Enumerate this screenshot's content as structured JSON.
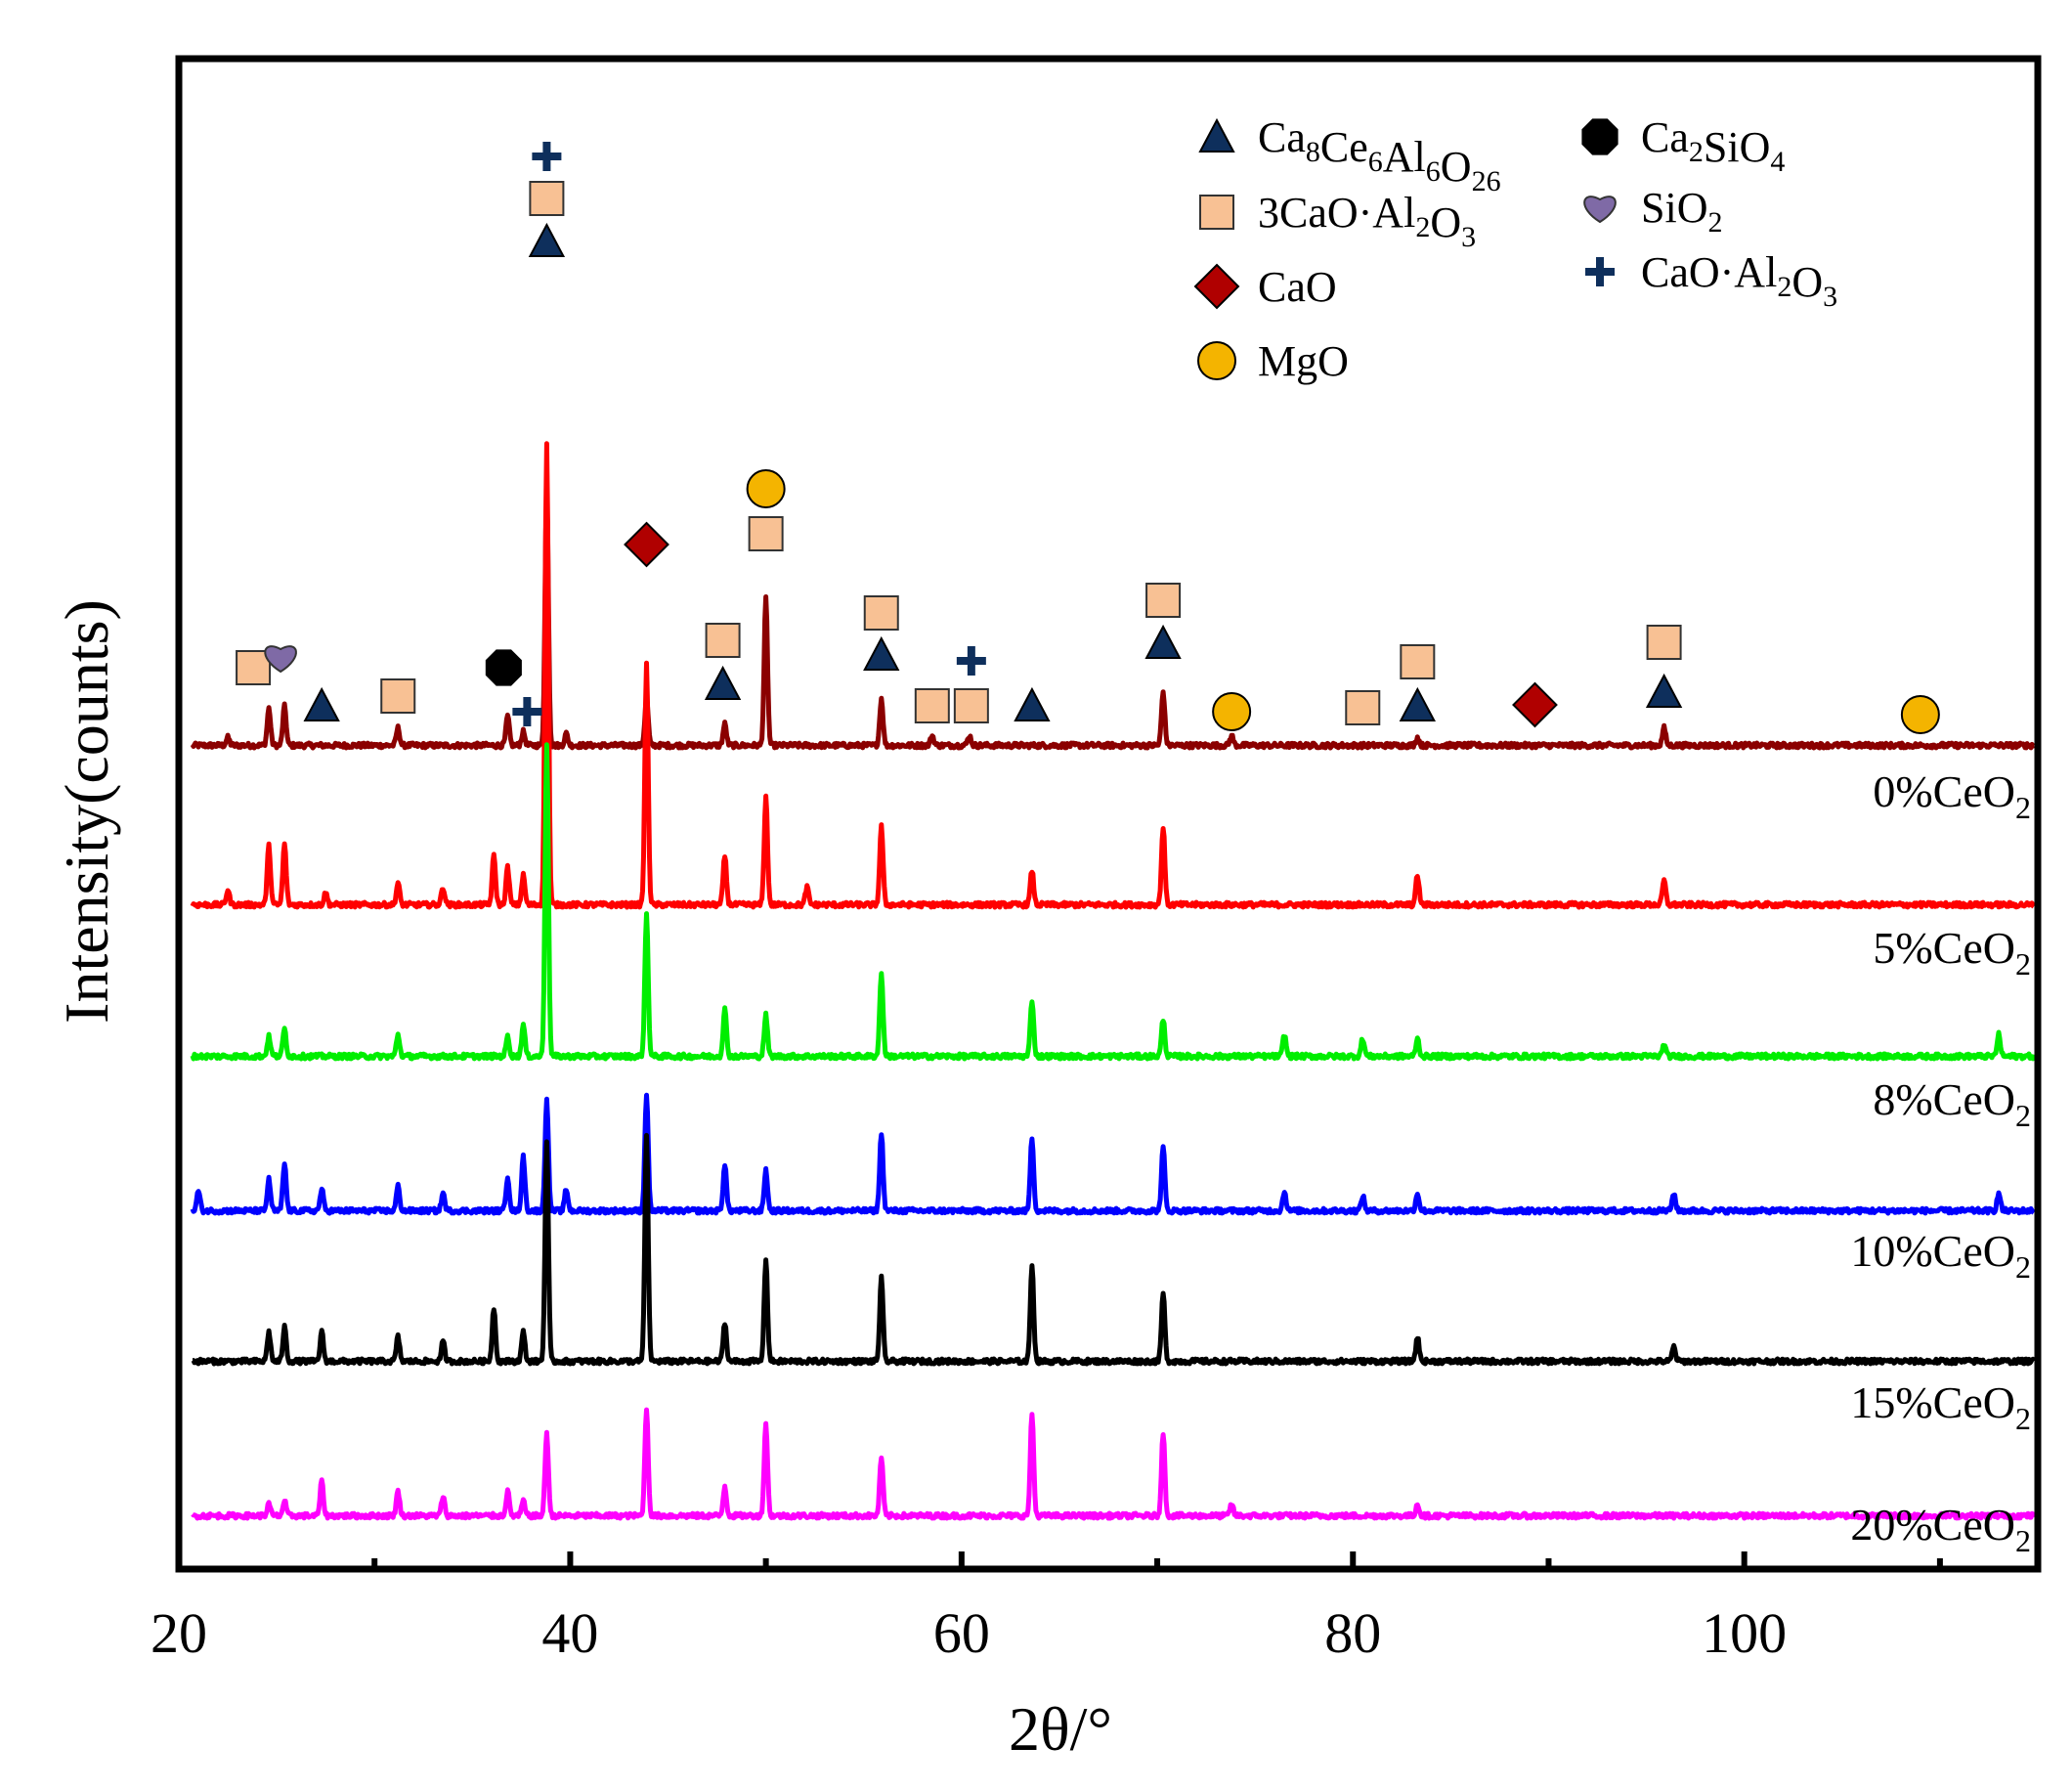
{
  "chart_data": {
    "type": "line",
    "xlabel": "2θ/°",
    "ylabel": "Intensity(counts)",
    "xlim": [
      20,
      115
    ],
    "xticks": [
      "20",
      "40",
      "60",
      "80",
      "100"
    ],
    "series": [
      {
        "name": "0%CeO2",
        "label_main": "0%CeO",
        "label_sub": "2",
        "color": "#8b0000",
        "baseline_counts": 0,
        "peaks": [
          {
            "x": 22.5,
            "y": 8
          },
          {
            "x": 24.6,
            "y": 38
          },
          {
            "x": 25.4,
            "y": 40
          },
          {
            "x": 31.2,
            "y": 18
          },
          {
            "x": 36.8,
            "y": 30
          },
          {
            "x": 37.6,
            "y": 14
          },
          {
            "x": 38.8,
            "y": 260
          },
          {
            "x": 39.8,
            "y": 12
          },
          {
            "x": 43.9,
            "y": 48
          },
          {
            "x": 47.9,
            "y": 22
          },
          {
            "x": 50.0,
            "y": 150
          },
          {
            "x": 55.9,
            "y": 48
          },
          {
            "x": 58.5,
            "y": 10
          },
          {
            "x": 60.4,
            "y": 10
          },
          {
            "x": 70.3,
            "y": 55
          },
          {
            "x": 73.8,
            "y": 10
          },
          {
            "x": 83.3,
            "y": 8
          },
          {
            "x": 95.9,
            "y": 18
          }
        ]
      },
      {
        "name": "5%CeO2",
        "label_main": "5%CeO",
        "label_sub": "2",
        "color": "#ff0000",
        "baseline_counts": 0,
        "peaks": [
          {
            "x": 22.5,
            "y": 15
          },
          {
            "x": 24.6,
            "y": 60
          },
          {
            "x": 25.4,
            "y": 62
          },
          {
            "x": 27.5,
            "y": 12
          },
          {
            "x": 31.2,
            "y": 22
          },
          {
            "x": 33.5,
            "y": 18
          },
          {
            "x": 36.1,
            "y": 50
          },
          {
            "x": 36.8,
            "y": 38
          },
          {
            "x": 37.6,
            "y": 30
          },
          {
            "x": 38.8,
            "y": 470
          },
          {
            "x": 43.9,
            "y": 245
          },
          {
            "x": 47.9,
            "y": 50
          },
          {
            "x": 50.0,
            "y": 110
          },
          {
            "x": 52.1,
            "y": 18
          },
          {
            "x": 55.9,
            "y": 80
          },
          {
            "x": 63.6,
            "y": 35
          },
          {
            "x": 70.3,
            "y": 80
          },
          {
            "x": 83.3,
            "y": 30
          },
          {
            "x": 95.9,
            "y": 25
          }
        ]
      },
      {
        "name": "8%CeO2",
        "label_main": "8%CeO",
        "label_sub": "2",
        "color": "#00ee00",
        "baseline_counts": 0,
        "peaks": [
          {
            "x": 24.6,
            "y": 20
          },
          {
            "x": 25.4,
            "y": 28
          },
          {
            "x": 31.2,
            "y": 22
          },
          {
            "x": 36.8,
            "y": 20
          },
          {
            "x": 37.6,
            "y": 32
          },
          {
            "x": 38.8,
            "y": 320
          },
          {
            "x": 43.9,
            "y": 145
          },
          {
            "x": 47.9,
            "y": 48
          },
          {
            "x": 50.0,
            "y": 42
          },
          {
            "x": 55.9,
            "y": 85
          },
          {
            "x": 63.6,
            "y": 58
          },
          {
            "x": 70.3,
            "y": 38
          },
          {
            "x": 76.5,
            "y": 22
          },
          {
            "x": 80.5,
            "y": 18
          },
          {
            "x": 83.3,
            "y": 18
          },
          {
            "x": 95.9,
            "y": 12
          },
          {
            "x": 113.0,
            "y": 22
          }
        ]
      },
      {
        "name": "10%CeO2",
        "label_main": "10%CeO",
        "label_sub": "2",
        "color": "#0000ff",
        "baseline_counts": 0,
        "peaks": [
          {
            "x": 21.0,
            "y": 20
          },
          {
            "x": 24.6,
            "y": 32
          },
          {
            "x": 25.4,
            "y": 48
          },
          {
            "x": 27.3,
            "y": 22
          },
          {
            "x": 31.2,
            "y": 25
          },
          {
            "x": 33.5,
            "y": 18
          },
          {
            "x": 36.8,
            "y": 35
          },
          {
            "x": 37.6,
            "y": 55
          },
          {
            "x": 38.8,
            "y": 115
          },
          {
            "x": 39.8,
            "y": 22
          },
          {
            "x": 43.9,
            "y": 120
          },
          {
            "x": 47.9,
            "y": 48
          },
          {
            "x": 50.0,
            "y": 42
          },
          {
            "x": 55.9,
            "y": 80
          },
          {
            "x": 63.6,
            "y": 75
          },
          {
            "x": 70.3,
            "y": 65
          },
          {
            "x": 76.5,
            "y": 20
          },
          {
            "x": 80.5,
            "y": 15
          },
          {
            "x": 83.3,
            "y": 18
          },
          {
            "x": 96.4,
            "y": 18
          },
          {
            "x": 113.0,
            "y": 18
          }
        ]
      },
      {
        "name": "15%CeO2",
        "label_main": "15%CeO",
        "label_sub": "2",
        "color": "#000000",
        "baseline_counts": 0,
        "peaks": [
          {
            "x": 24.6,
            "y": 30
          },
          {
            "x": 25.4,
            "y": 35
          },
          {
            "x": 27.3,
            "y": 30
          },
          {
            "x": 31.2,
            "y": 25
          },
          {
            "x": 33.5,
            "y": 20
          },
          {
            "x": 36.1,
            "y": 55
          },
          {
            "x": 37.6,
            "y": 30
          },
          {
            "x": 38.8,
            "y": 225
          },
          {
            "x": 43.9,
            "y": 230
          },
          {
            "x": 47.9,
            "y": 40
          },
          {
            "x": 50.0,
            "y": 105
          },
          {
            "x": 55.9,
            "y": 85
          },
          {
            "x": 63.6,
            "y": 100
          },
          {
            "x": 70.3,
            "y": 70
          },
          {
            "x": 83.3,
            "y": 25
          },
          {
            "x": 96.4,
            "y": 15
          }
        ]
      },
      {
        "name": "20%CeO2",
        "label_main": "20%CeO",
        "label_sub": "2",
        "color": "#ff00ff",
        "baseline_counts": 0,
        "peaks": [
          {
            "x": 24.6,
            "y": 12
          },
          {
            "x": 25.4,
            "y": 15
          },
          {
            "x": 27.3,
            "y": 35
          },
          {
            "x": 31.2,
            "y": 25
          },
          {
            "x": 33.5,
            "y": 20
          },
          {
            "x": 36.8,
            "y": 25
          },
          {
            "x": 37.6,
            "y": 15
          },
          {
            "x": 38.8,
            "y": 85
          },
          {
            "x": 43.9,
            "y": 110
          },
          {
            "x": 47.9,
            "y": 30
          },
          {
            "x": 50.0,
            "y": 95
          },
          {
            "x": 55.9,
            "y": 60
          },
          {
            "x": 63.6,
            "y": 105
          },
          {
            "x": 70.3,
            "y": 85
          },
          {
            "x": 73.8,
            "y": 12
          },
          {
            "x": 83.3,
            "y": 12
          }
        ]
      }
    ],
    "phase_markers": [
      {
        "phase": "Ca8Ce6Al6O26",
        "symbol": "triangle",
        "x": [
          27.3,
          38.8,
          47.8,
          55.9,
          63.6,
          70.3,
          83.3,
          95.9
        ]
      },
      {
        "phase": "3CaO·Al2O3",
        "symbol": "square",
        "x": [
          23.8,
          31.2,
          38.8,
          47.8,
          50.0,
          55.9,
          58.5,
          60.5,
          70.3,
          80.5,
          83.3,
          95.9
        ]
      },
      {
        "phase": "CaO",
        "symbol": "diamond",
        "x": [
          43.9,
          89.3
        ]
      },
      {
        "phase": "MgO",
        "symbol": "circle",
        "x": [
          50.0,
          73.8,
          109.0
        ]
      },
      {
        "phase": "Ca2SiO4",
        "symbol": "octagon",
        "x": [
          36.6
        ]
      },
      {
        "phase": "SiO2",
        "symbol": "heart",
        "x": [
          25.2
        ]
      },
      {
        "phase": "CaO·Al2O3",
        "symbol": "plus",
        "x": [
          37.8,
          38.8,
          60.5
        ]
      }
    ]
  },
  "legend": {
    "items": [
      {
        "symbol": "triangle",
        "color": "#0e2f5c",
        "parts": [
          [
            "Ca",
            ""
          ],
          [
            "8",
            "sub"
          ],
          [
            "Ce",
            ""
          ],
          [
            "6",
            "sub"
          ],
          [
            "Al",
            ""
          ],
          [
            "6",
            "sub"
          ],
          [
            "O",
            ""
          ],
          [
            "26",
            "sub"
          ]
        ]
      },
      {
        "symbol": "square",
        "color": "#f8c194",
        "parts": [
          [
            "3CaO·Al",
            ""
          ],
          [
            "2",
            "sub"
          ],
          [
            "O",
            ""
          ],
          [
            "3",
            "sub"
          ]
        ]
      },
      {
        "symbol": "diamond",
        "color": "#b00000",
        "parts": [
          [
            "CaO",
            ""
          ]
        ]
      },
      {
        "symbol": "circle",
        "color": "#f4b400",
        "parts": [
          [
            "MgO",
            ""
          ]
        ]
      },
      {
        "symbol": "octagon",
        "color": "#000000",
        "parts": [
          [
            "Ca",
            ""
          ],
          [
            "2",
            "sub"
          ],
          [
            "SiO",
            ""
          ],
          [
            "4",
            "sub"
          ]
        ]
      },
      {
        "symbol": "heart",
        "color": "#7f6aa6",
        "parts": [
          [
            "SiO",
            ""
          ],
          [
            "2",
            "sub"
          ]
        ]
      },
      {
        "symbol": "plus",
        "color": "#0e2f5c",
        "parts": [
          [
            "CaO·Al",
            ""
          ],
          [
            "2",
            "sub"
          ],
          [
            "O",
            ""
          ],
          [
            "3",
            "sub"
          ]
        ]
      }
    ]
  }
}
